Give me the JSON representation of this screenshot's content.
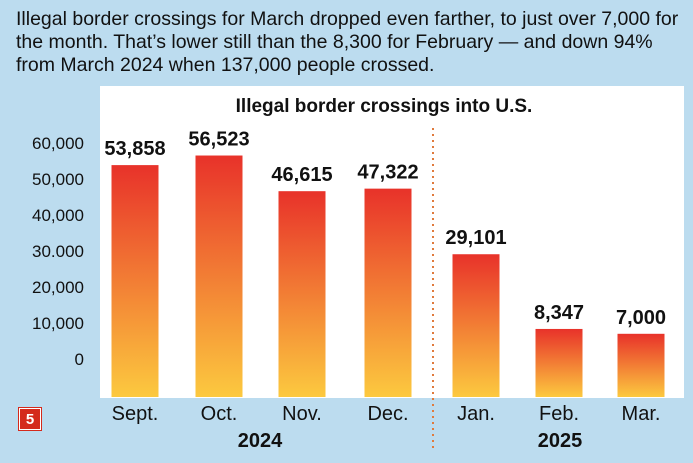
{
  "caption": "Illegal border crossings for March dropped even farther, to just over 7,000 for the month. That’s lower still than the 8,300 for February — and down 94% from March 2024 when 137,000 people crossed.",
  "badge": "5",
  "colors": {
    "bar_top": "#e8322a",
    "bar_bottom": "#fcc93f",
    "divider": "#e07a3c",
    "background": "#bcdcef"
  },
  "chart_data": {
    "type": "bar",
    "title": "Illegal border crossings into U.S.",
    "categories": [
      "Sept.",
      "Oct.",
      "Nov.",
      "Dec.",
      "Jan.",
      "Feb.",
      "Mar."
    ],
    "values": [
      53858,
      56523,
      46615,
      47322,
      29101,
      8347,
      7000
    ],
    "value_labels": [
      "53,858",
      "56,523",
      "46,615",
      "47,322",
      "29,101",
      "8,347",
      "7,000"
    ],
    "yticks": [
      0,
      10000,
      20000,
      30000,
      40000,
      50000,
      60000
    ],
    "ytick_labels": [
      "0",
      "10,000",
      "20,000",
      "30.000",
      "40,000",
      "50,000",
      "60,000"
    ],
    "ylim": [
      0,
      60000
    ],
    "groups": [
      {
        "label": "2024",
        "categories": [
          "Sept.",
          "Oct.",
          "Nov.",
          "Dec."
        ]
      },
      {
        "label": "2025",
        "categories": [
          "Jan.",
          "Feb.",
          "Mar."
        ]
      }
    ],
    "xlabel": "",
    "ylabel": "",
    "grid": false
  }
}
